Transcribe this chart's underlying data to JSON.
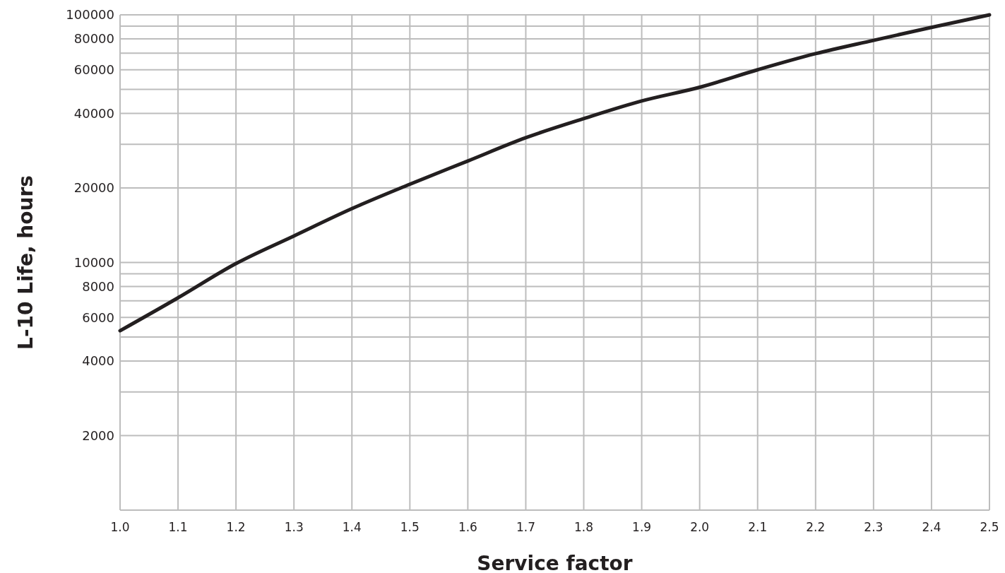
{
  "chart_data": {
    "type": "line",
    "xlabel": "Service factor",
    "ylabel": "L-10 Life, hours",
    "x": [
      1.0,
      1.1,
      1.2,
      1.3,
      1.4,
      1.5,
      1.6,
      1.7,
      1.8,
      1.9,
      2.0,
      2.1,
      2.2,
      2.3,
      2.4,
      2.5
    ],
    "series": [
      {
        "color": "#231f20",
        "values": [
          5300,
          7200,
          9900,
          12800,
          16500,
          20700,
          25700,
          31900,
          38100,
          44900,
          51000,
          60000,
          69700,
          78900,
          89000,
          100000
        ]
      }
    ],
    "xlim": [
      1.0,
      2.5
    ],
    "xticks": [
      {
        "value": 1.0,
        "label": "1.0"
      },
      1.1,
      1.2,
      1.3,
      1.4,
      1.5,
      1.6,
      1.7,
      1.8,
      1.9,
      {
        "value": 2.0,
        "label": "2.0"
      },
      2.1,
      2.2,
      2.3,
      2.4,
      2.5
    ],
    "ylim": [
      1000,
      100000
    ],
    "yticks": [
      {
        "value": 1000,
        "label": null
      },
      2000,
      {
        "value": 3000,
        "label": null
      },
      4000,
      {
        "value": 5000,
        "label": null
      },
      6000,
      {
        "value": 7000,
        "label": null
      },
      8000,
      {
        "value": 9000,
        "label": null
      },
      10000,
      20000,
      {
        "value": 30000,
        "label": null
      },
      40000,
      {
        "value": 50000,
        "label": null
      },
      60000,
      {
        "value": 70000,
        "label": null
      },
      80000,
      {
        "value": 90000,
        "label": null
      },
      100000
    ],
    "log": "y",
    "grid": true,
    "marker": "none",
    "line_style": "solid"
  }
}
